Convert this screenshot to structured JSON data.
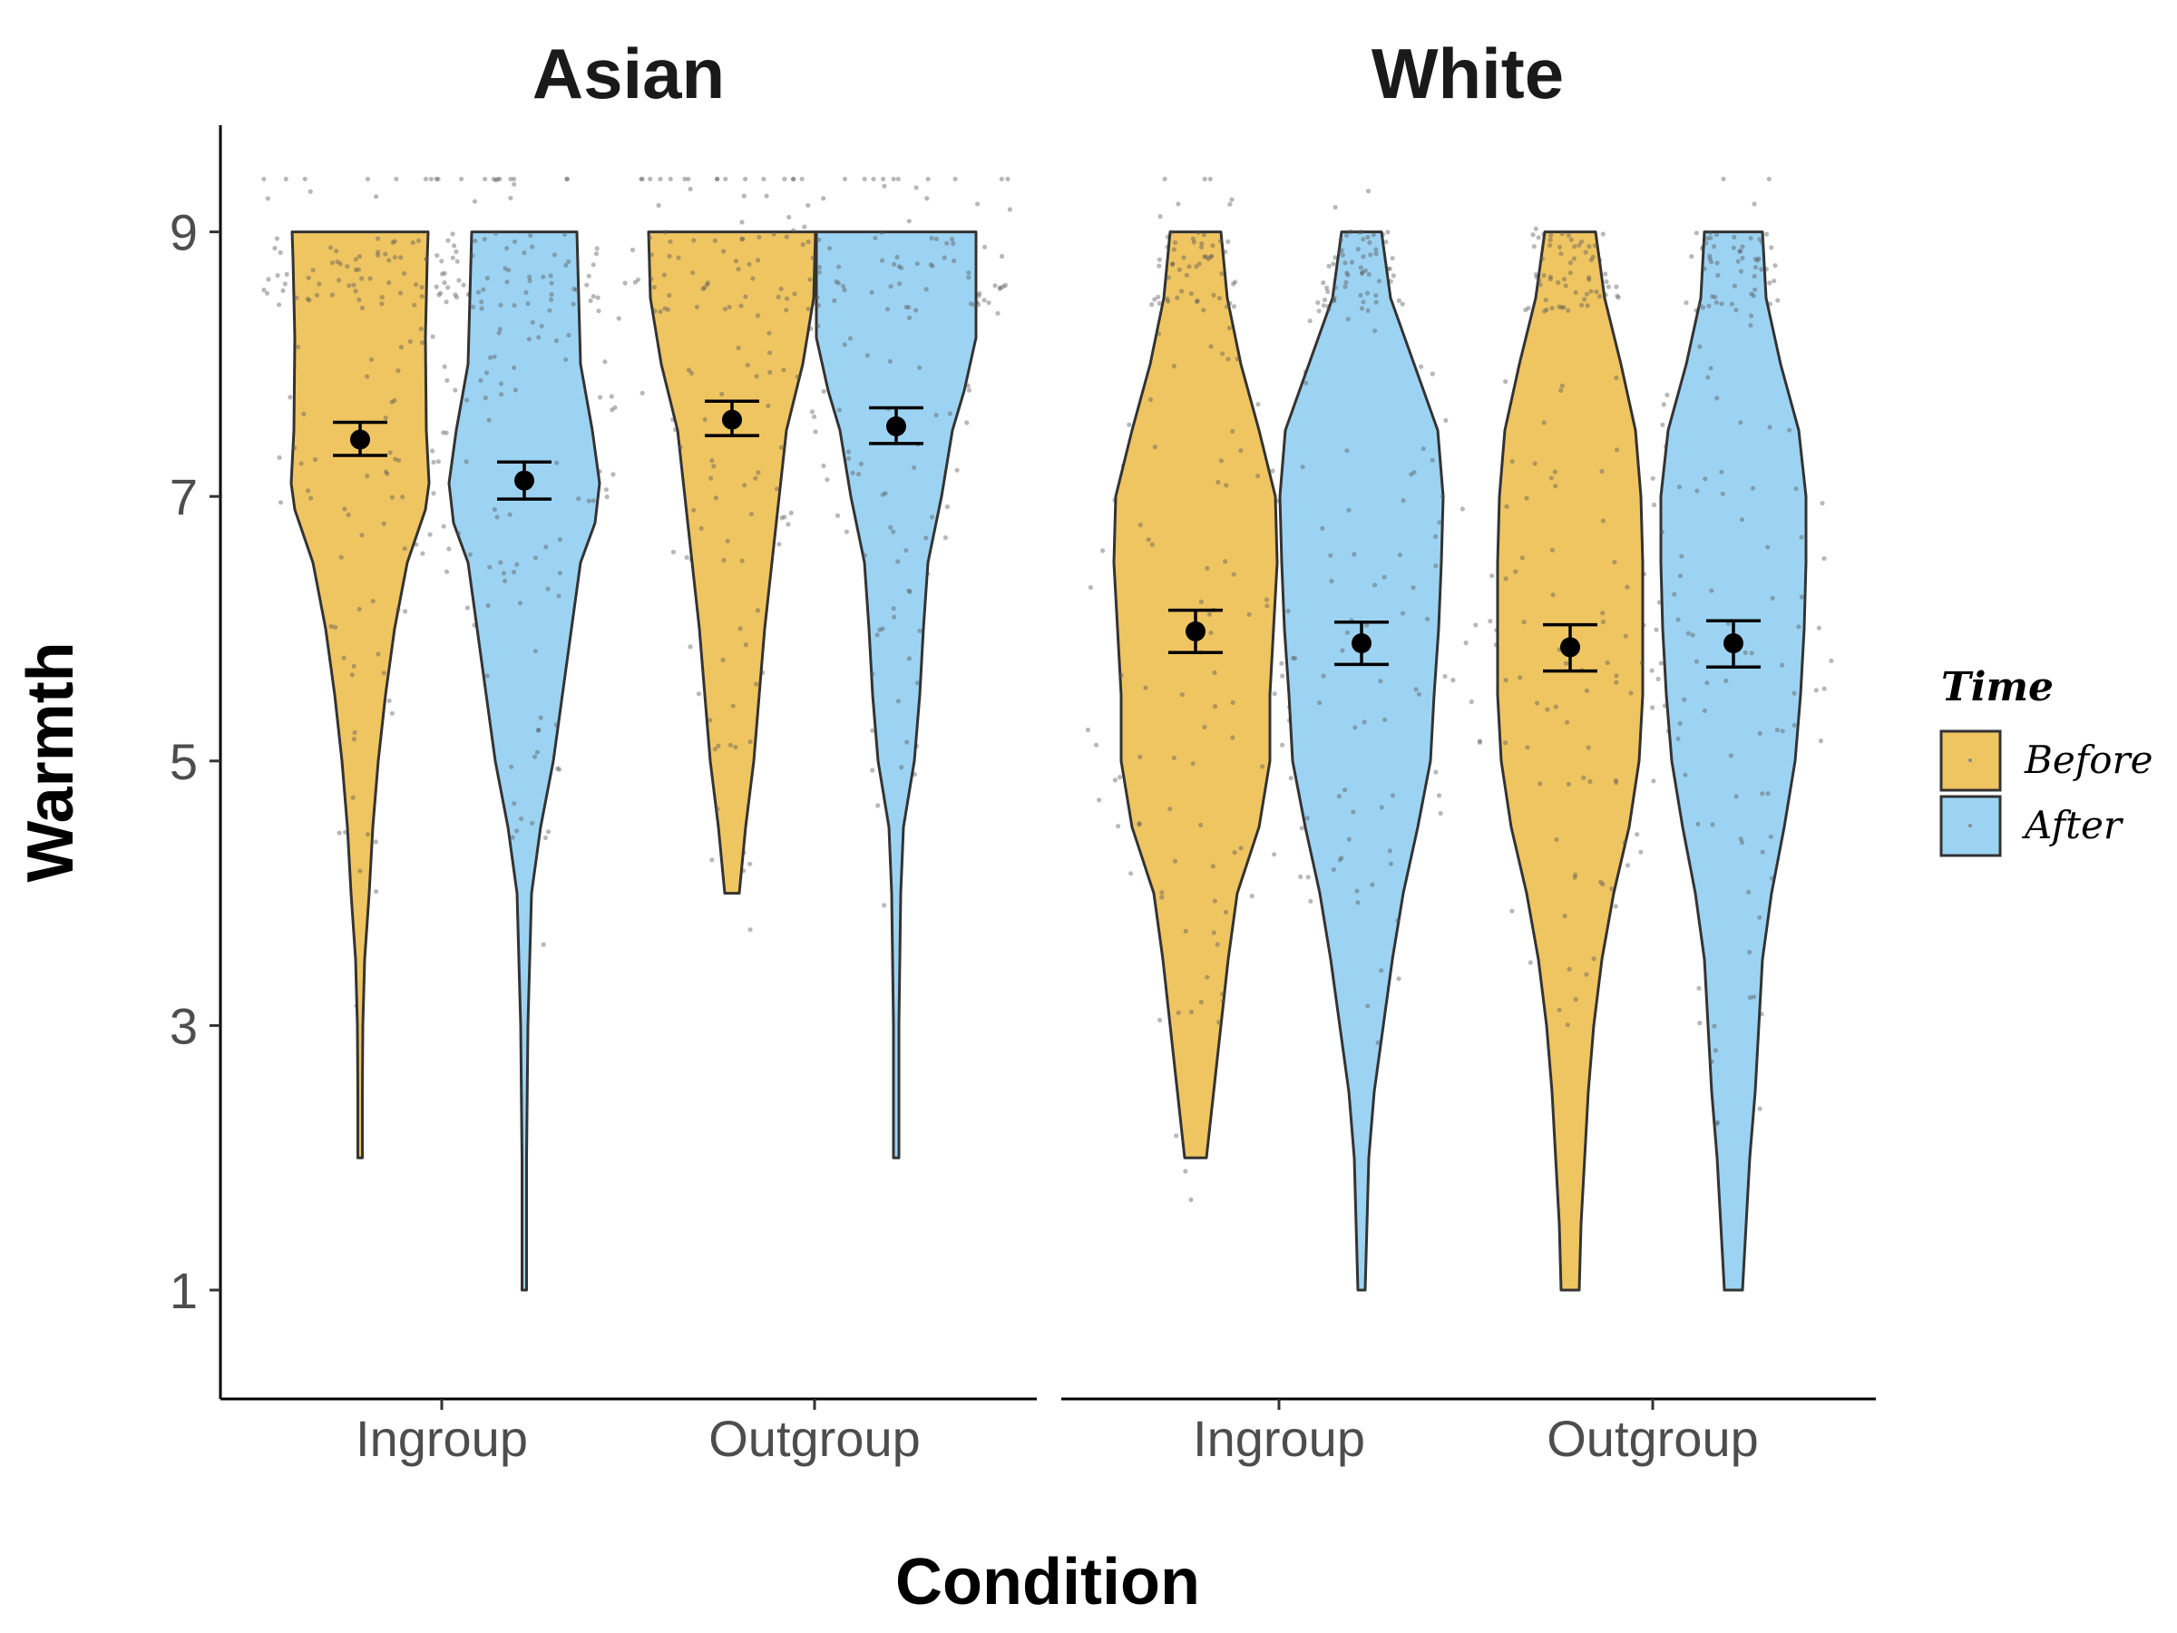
{
  "chart_data": {
    "type": "violin",
    "xlabel": "Condition",
    "ylabel": "Warmth",
    "ylim": [
      0.6,
      9.8
    ],
    "yticks": [
      "1",
      "3",
      "5",
      "7",
      "9"
    ],
    "categories": [
      "Ingroup",
      "Outgroup"
    ],
    "legend": {
      "title": "Time",
      "placement": "right",
      "entries": [
        {
          "label": "Before",
          "color": "#EFC562"
        },
        {
          "label": "After",
          "color": "#9DD3F2"
        }
      ]
    },
    "grid": false,
    "panels": [
      {
        "title": "Asian",
        "groups": [
          {
            "category": "Ingroup",
            "series": "Before",
            "mean": 7.43,
            "ci": [
              7.31,
              7.56
            ],
            "min": 2,
            "max": 9
          },
          {
            "category": "Ingroup",
            "series": "After",
            "mean": 7.12,
            "ci": [
              6.98,
              7.26
            ],
            "min": 1,
            "max": 9
          },
          {
            "category": "Outgroup",
            "series": "Before",
            "mean": 7.58,
            "ci": [
              7.46,
              7.72
            ],
            "min": 4,
            "max": 9
          },
          {
            "category": "Outgroup",
            "series": "After",
            "mean": 7.53,
            "ci": [
              7.4,
              7.67
            ],
            "min": 2,
            "max": 9
          }
        ]
      },
      {
        "title": "White",
        "groups": [
          {
            "category": "Ingroup",
            "series": "Before",
            "mean": 5.98,
            "ci": [
              5.82,
              6.14
            ],
            "min": 2,
            "max": 9
          },
          {
            "category": "Ingroup",
            "series": "After",
            "mean": 5.89,
            "ci": [
              5.73,
              6.05
            ],
            "min": 1,
            "max": 9
          },
          {
            "category": "Outgroup",
            "series": "Before",
            "mean": 5.86,
            "ci": [
              5.68,
              6.03
            ],
            "min": 1,
            "max": 9
          },
          {
            "category": "Outgroup",
            "series": "After",
            "mean": 5.89,
            "ci": [
              5.71,
              6.06
            ],
            "min": 1,
            "max": 9
          }
        ]
      }
    ]
  }
}
